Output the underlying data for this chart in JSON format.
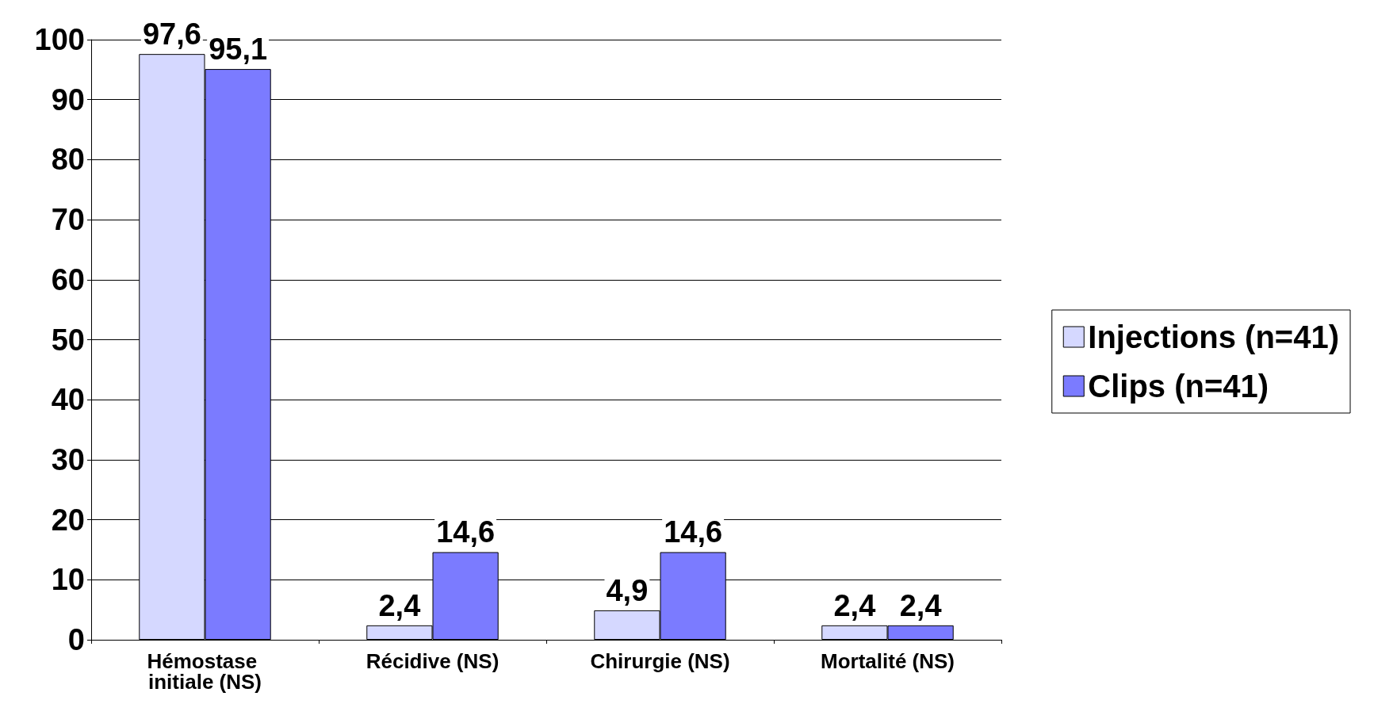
{
  "chart_data": {
    "type": "bar",
    "categories": [
      "Hémostase initiale (NS)",
      "Récidive (NS)",
      "Chirurgie (NS)",
      "Mortalité (NS)"
    ],
    "series": [
      {
        "name": "Injections (n=41)",
        "color": "#d5d8ff",
        "values": [
          97.6,
          2.4,
          4.9,
          2.4
        ],
        "value_labels": [
          "97,6",
          "2,4",
          "4,9",
          "2,4"
        ]
      },
      {
        "name": "Clips (n=41)",
        "color": "#7b7bff",
        "values": [
          95.1,
          14.6,
          14.6,
          2.4
        ],
        "value_labels": [
          "95,1",
          "14,6",
          "14,6",
          "2,4"
        ]
      }
    ],
    "ylim": [
      0,
      100
    ],
    "yticks": [
      0,
      10,
      20,
      30,
      40,
      50,
      60,
      70,
      80,
      90,
      100
    ],
    "grid": "y",
    "legend": "right"
  }
}
